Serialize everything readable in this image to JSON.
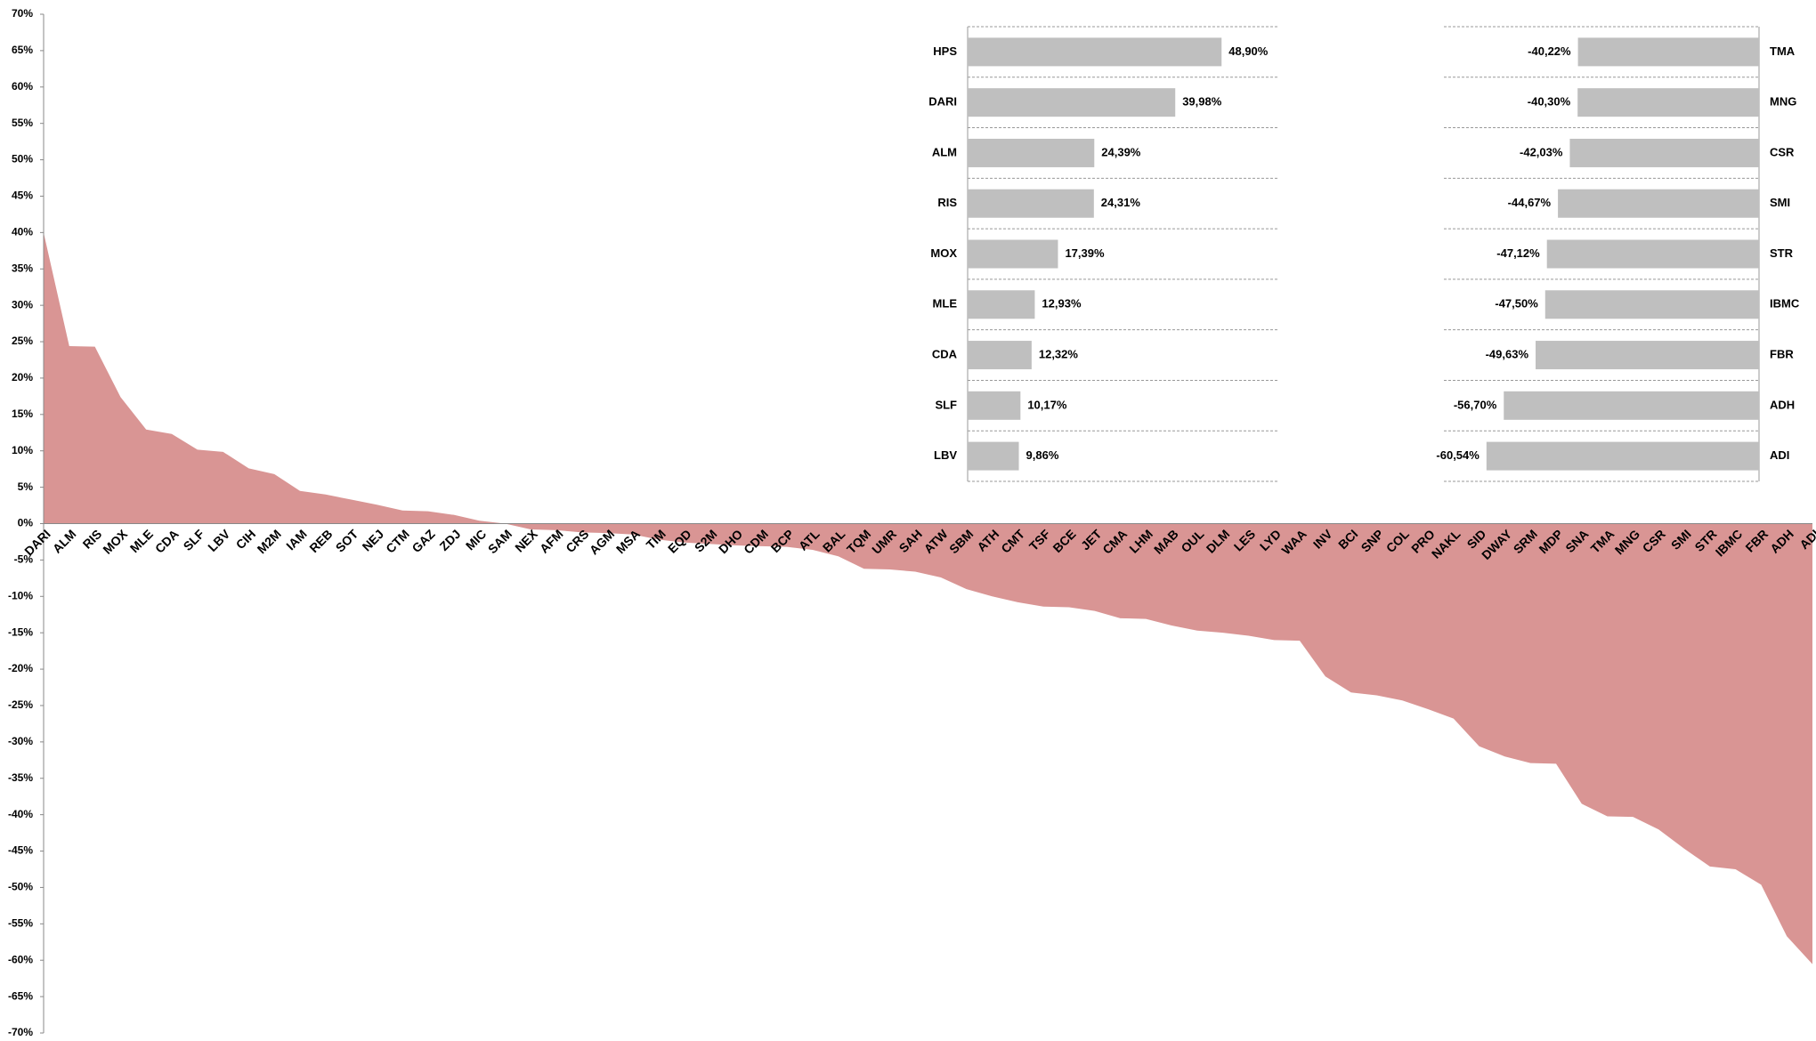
{
  "chart_data": [
    {
      "type": "area",
      "color": "#d99594",
      "categories": [
        "DARI",
        "ALM",
        "RIS",
        "MOX",
        "MLE",
        "CDA",
        "SLF",
        "LBV",
        "CIH",
        "M2M",
        "IAM",
        "REB",
        "SOT",
        "NEJ",
        "CTM",
        "GAZ",
        "ZDJ",
        "MIC",
        "SAM",
        "NEX",
        "AFM",
        "CRS",
        "AGM",
        "MSA",
        "TIM",
        "EQD",
        "S2M",
        "DHO",
        "CDM",
        "BCP",
        "ATL",
        "BAL",
        "TQM",
        "UMR",
        "SAH",
        "ATW",
        "SBM",
        "ATH",
        "CMT",
        "TSF",
        "BCE",
        "JET",
        "CMA",
        "LHM",
        "MAB",
        "OUL",
        "DLM",
        "LES",
        "LYD",
        "WAA",
        "INV",
        "BCI",
        "SNP",
        "COL",
        "PRO",
        "NAKL",
        "SID",
        "DWAY",
        "SRM",
        "MDP",
        "SNA",
        "TMA",
        "MNG",
        "CSR",
        "SMI",
        "STR",
        "IBMC",
        "FBR",
        "ADH",
        "ADI"
      ],
      "values": [
        39.98,
        24.39,
        24.31,
        17.39,
        12.93,
        12.32,
        10.17,
        9.86,
        7.6,
        6.8,
        4.5,
        4.0,
        3.3,
        2.6,
        1.8,
        1.7,
        1.2,
        0.4,
        0,
        -0.8,
        -0.9,
        -1.2,
        -1.3,
        -1.5,
        -2.2,
        -2.6,
        -2.8,
        -3.0,
        -3.1,
        -3.2,
        -3.6,
        -4.5,
        -6.2,
        -6.3,
        -6.6,
        -7.4,
        -9.0,
        -10.0,
        -10.8,
        -11.4,
        -11.5,
        -12.0,
        -13.0,
        -13.1,
        -14.0,
        -14.7,
        -15.0,
        -15.4,
        -16.0,
        -16.1,
        -21.0,
        -23.2,
        -23.6,
        -24.3,
        -25.5,
        -26.8,
        -30.6,
        -32.0,
        -32.9,
        -33.0,
        -38.5,
        -40.22,
        -40.3,
        -42.03,
        -44.67,
        -47.12,
        -47.5,
        -49.63,
        -56.7,
        -60.54
      ],
      "ylim": [
        -70,
        70
      ],
      "yticks": [
        {
          "value": 70,
          "label": "70%"
        },
        {
          "value": 65,
          "label": "65%"
        },
        {
          "value": 60,
          "label": "60%"
        },
        {
          "value": 55,
          "label": "55%"
        },
        {
          "value": 50,
          "label": "50%"
        },
        {
          "value": 45,
          "label": "45%"
        },
        {
          "value": 40,
          "label": "40%"
        },
        {
          "value": 35,
          "label": "35%"
        },
        {
          "value": 30,
          "label": "30%"
        },
        {
          "value": 25,
          "label": "25%"
        },
        {
          "value": 20,
          "label": "20%"
        },
        {
          "value": 15,
          "label": "15%"
        },
        {
          "value": 10,
          "label": "10%"
        },
        {
          "value": 5,
          "label": "5%"
        },
        {
          "value": 0,
          "label": "0%"
        },
        {
          "value": -5,
          "label": "-5%"
        },
        {
          "value": -10,
          "label": "-10%"
        },
        {
          "value": -15,
          "label": "-15%"
        },
        {
          "value": -20,
          "label": "-20%"
        },
        {
          "value": -25,
          "label": "-25%"
        },
        {
          "value": -30,
          "label": "-30%"
        },
        {
          "value": -35,
          "label": "-35%"
        },
        {
          "value": -40,
          "label": "-40%"
        },
        {
          "value": -45,
          "label": "-45%"
        },
        {
          "value": -50,
          "label": "-50%"
        },
        {
          "value": -55,
          "label": "-55%"
        },
        {
          "value": -60,
          "label": "-60%"
        },
        {
          "value": -65,
          "label": "-65%"
        },
        {
          "value": -70,
          "label": "-70%"
        }
      ]
    },
    {
      "type": "hbar",
      "color": "#bfbfbf",
      "categories": [
        "HPS",
        "DARI",
        "ALM",
        "RIS",
        "MOX",
        "MLE",
        "CDA",
        "SLF",
        "LBV"
      ],
      "values": [
        48.9,
        39.98,
        24.39,
        24.31,
        17.39,
        12.93,
        12.32,
        10.17,
        9.86
      ],
      "value_labels": [
        "48,90%",
        "39,98%",
        "24,39%",
        "24,31%",
        "17,39%",
        "12,93%",
        "12,32%",
        "10,17%",
        "9,86%"
      ],
      "xlim": [
        0,
        60
      ]
    },
    {
      "type": "hbar",
      "color": "#bfbfbf",
      "categories": [
        "TMA",
        "MNG",
        "CSR",
        "SMI",
        "STR",
        "IBMC",
        "FBR",
        "ADH",
        "ADI"
      ],
      "values": [
        -40.22,
        -40.3,
        -42.03,
        -44.67,
        -47.12,
        -47.5,
        -49.63,
        -56.7,
        -60.54
      ],
      "value_labels": [
        "-40,22%",
        "-40,30%",
        "-42,03%",
        "-44,67%",
        "-47,12%",
        "-47,50%",
        "-49,63%",
        "-56,70%",
        "-60,54%"
      ],
      "xlim": [
        -70,
        0
      ]
    }
  ]
}
